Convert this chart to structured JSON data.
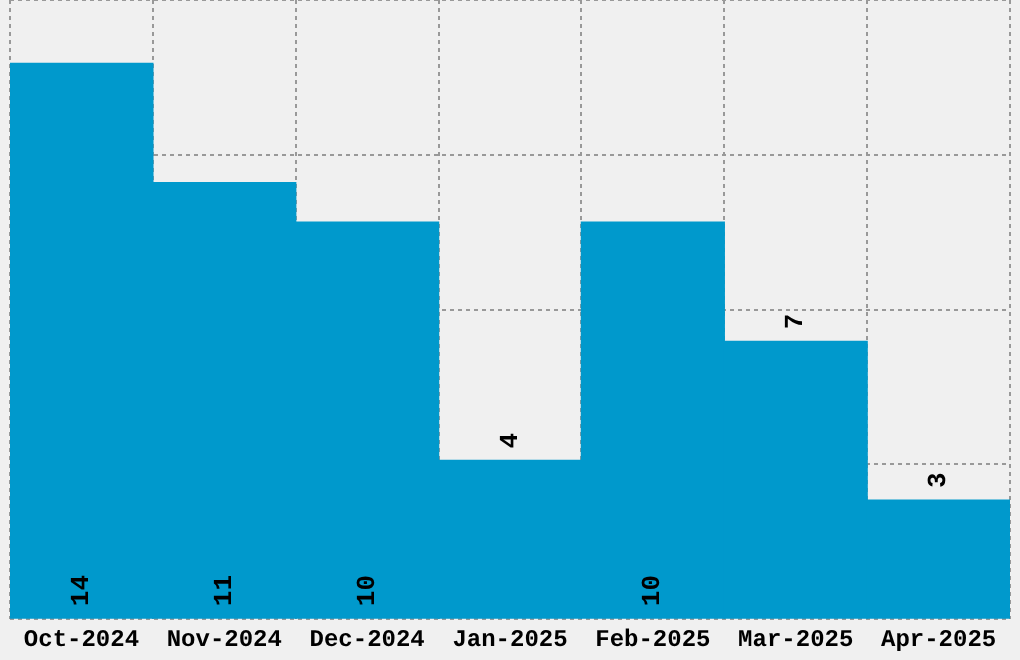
{
  "chart_data": {
    "type": "bar",
    "categories": [
      "Oct-2024",
      "Nov-2024",
      "Dec-2024",
      "Jan-2025",
      "Feb-2025",
      "Mar-2025",
      "Apr-2025"
    ],
    "values": [
      14,
      11,
      10,
      4,
      10,
      7,
      3
    ],
    "color": "#0099cc",
    "data_labels": true,
    "grid": true,
    "tick_labels": "x",
    "ylim": [
      0,
      15.6
    ],
    "yticks": [
      {
        "value": 0,
        "label": null
      },
      {
        "value": 3.9,
        "label": null
      },
      {
        "value": 7.8,
        "label": null
      },
      {
        "value": 11.7,
        "label": null
      },
      {
        "value": 15.6,
        "label": null
      }
    ]
  }
}
